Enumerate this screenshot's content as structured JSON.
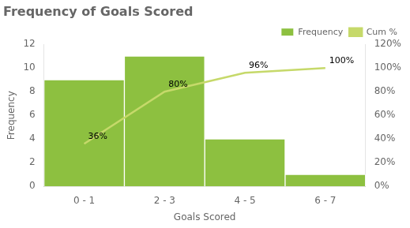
{
  "chart_data": {
    "type": "bar",
    "title": "Frequency of Goals Scored",
    "xlabel": "Goals Scored",
    "ylabel": "Frequency",
    "categories": [
      "0 - 1",
      "2 - 3",
      "4 - 5",
      "6 - 7"
    ],
    "series": [
      {
        "name": "Frequency",
        "color": "#8dc040",
        "values": [
          9,
          11,
          4,
          1
        ]
      },
      {
        "name": "Cum %",
        "type": "line",
        "axis": "y2",
        "color": "#c6d96a",
        "values": [
          0.36,
          0.8,
          0.96,
          1.0
        ],
        "value_labels": [
          "36%",
          "80%",
          "96%",
          "100%"
        ],
        "data_labels": true
      }
    ],
    "ylim": [
      0,
      12
    ],
    "yticks": [
      0,
      2,
      4,
      6,
      8,
      10,
      12
    ],
    "y2lim": [
      0,
      1.2
    ],
    "y2ticks": [
      {
        "value": 0.0,
        "label": "0%"
      },
      {
        "value": 0.2,
        "label": "20%"
      },
      {
        "value": 0.4,
        "label": "40%"
      },
      {
        "value": 0.6,
        "label": "60%"
      },
      {
        "value": 0.8,
        "label": "80%"
      },
      {
        "value": 1.0,
        "label": "100%"
      },
      {
        "value": 1.2,
        "label": "120%"
      }
    ],
    "grid": false,
    "legend": "upper right"
  }
}
